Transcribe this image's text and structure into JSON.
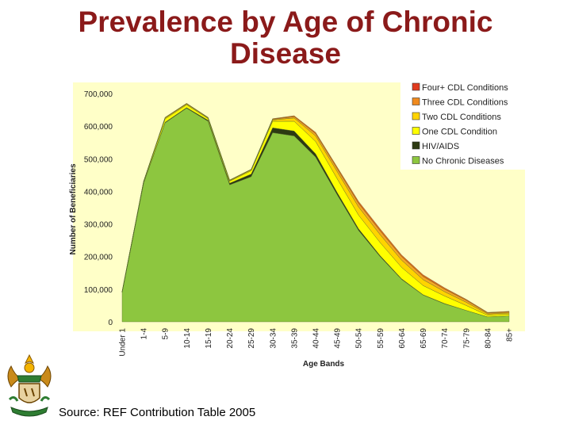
{
  "slide": {
    "title_line1": "Prevalence by Age of Chronic",
    "title_line2": "Disease",
    "source": "Source: REF Contribution Table 2005",
    "emblem_icon": "coat-of-arms-icon"
  },
  "colors": {
    "title": "#8b1a1a",
    "plot_background": "#ffffc8",
    "series": [
      "#8dc63f",
      "#2d3a12",
      "#ffff00",
      "#ffd400",
      "#f5a623",
      "#e8631a"
    ],
    "legend_swatches": [
      "#e03a1e",
      "#f08a1e",
      "#ffd400",
      "#ffff00",
      "#2d3a12",
      "#8dc63f"
    ]
  },
  "chart_data": {
    "type": "area",
    "stacked": true,
    "title": "",
    "xlabel": "Age Bands",
    "ylabel": "Number of Beneficiaries",
    "ylim": [
      0,
      700000
    ],
    "yticks": [
      0,
      100000,
      200000,
      300000,
      400000,
      500000,
      600000,
      700000
    ],
    "ytick_labels": [
      "0",
      "100,000",
      "200,000",
      "300,000",
      "400,000",
      "500,000",
      "600,000",
      "700,000"
    ],
    "grid": false,
    "legend_position": "top-right",
    "categories": [
      "Under 1",
      "1-4",
      "5-9",
      "10-14",
      "15-19",
      "20-24",
      "25-29",
      "30-34",
      "35-39",
      "40-44",
      "45-49",
      "50-54",
      "55-59",
      "60-64",
      "65-69",
      "70-74",
      "75-79",
      "80-84",
      "85+"
    ],
    "series": [
      {
        "name": "No Chronic Diseases",
        "values": [
          90000,
          425000,
          610000,
          655000,
          615000,
          420000,
          445000,
          580000,
          570000,
          505000,
          390000,
          280000,
          200000,
          130000,
          82000,
          55000,
          35000,
          15000,
          18000
        ]
      },
      {
        "name": "HIV/AIDS",
        "values": [
          0,
          1000,
          2000,
          2000,
          3000,
          5000,
          8000,
          15000,
          15000,
          10000,
          7000,
          5000,
          3000,
          2000,
          1000,
          1000,
          0,
          0,
          0
        ]
      },
      {
        "name": "One CDL Condition",
        "values": [
          2000,
          3000,
          10000,
          8000,
          5000,
          6000,
          10000,
          20000,
          30000,
          38000,
          42000,
          42000,
          40000,
          35000,
          28000,
          23000,
          15000,
          5000,
          5000
        ]
      },
      {
        "name": "Two CDL Conditions",
        "values": [
          1000,
          1000,
          3000,
          3000,
          2000,
          2000,
          3000,
          4000,
          10000,
          17000,
          22000,
          25000,
          24000,
          22000,
          18000,
          13000,
          10000,
          4000,
          4000
        ]
      },
      {
        "name": "Three CDL Conditions",
        "values": [
          0,
          1000,
          1000,
          1000,
          1000,
          1000,
          1000,
          2000,
          4000,
          7000,
          9000,
          11000,
          12000,
          11000,
          10000,
          8000,
          6000,
          3000,
          3000
        ]
      },
      {
        "name": "Four+ CDL Conditions",
        "values": [
          0,
          0,
          1000,
          1000,
          1000,
          1000,
          1000,
          2000,
          3000,
          4000,
          5000,
          6000,
          6000,
          5000,
          5000,
          4000,
          3000,
          2000,
          2000
        ]
      }
    ],
    "legend_order": [
      "Four+ CDL Conditions",
      "Three CDL Conditions",
      "Two CDL Conditions",
      "One CDL Condition",
      "HIV/AIDS",
      "No Chronic Diseases"
    ]
  }
}
